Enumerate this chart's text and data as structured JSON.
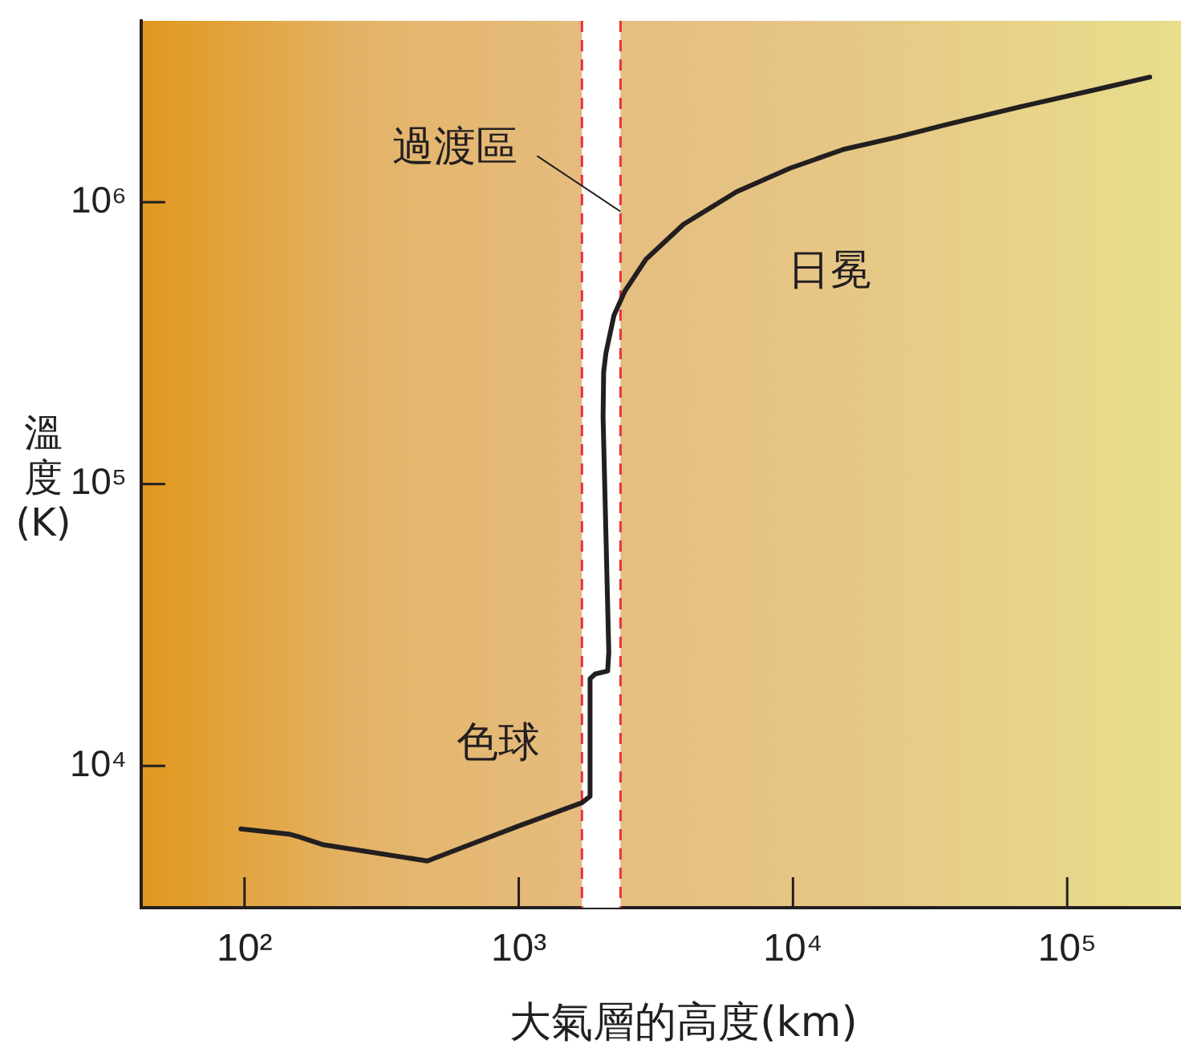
{
  "chart_data": {
    "type": "line",
    "xlabel": "大氣層的高度(km)",
    "ylabel": "溫度(K)",
    "log": "xy",
    "grid": false,
    "legend": false,
    "line_style": "solid",
    "x": [
      97,
      145,
      158,
      194,
      283,
      464,
      990,
      1700,
      1820,
      1820,
      1900,
      2110,
      2130,
      2030,
      2040,
      2080,
      2225,
      2436,
      2913,
      3990,
      6240,
      9760,
      15300,
      23900,
      35800,
      70100,
      137000,
      200000
    ],
    "series": [
      {
        "color": "#231f20",
        "values": [
          5980,
          5730,
          5600,
          5250,
          4960,
          4600,
          6100,
          7400,
          7800,
          20400,
          21200,
          21700,
          25300,
          173000,
          250000,
          292000,
          397000,
          483000,
          628000,
          835000,
          1090000,
          1320000,
          1540000,
          1700000,
          1880000,
          2200000,
          2550000,
          2780000
        ]
      }
    ],
    "xlim": [
      42,
      260000
    ],
    "ylim": [
      3140,
      4400000
    ],
    "xticks": [
      {
        "value": 100,
        "label": "10²"
      },
      {
        "value": 1000,
        "label": "10³"
      },
      {
        "value": 10000,
        "label": "10⁴"
      },
      {
        "value": 100000,
        "label": "10⁵"
      }
    ],
    "yticks": [
      {
        "value": 10000,
        "label": "10⁴"
      },
      {
        "value": 100000,
        "label": "10⁵"
      },
      {
        "value": 1000000,
        "label": "10⁶"
      }
    ],
    "bands": [
      {
        "axis": "x",
        "from": 1700,
        "to": 2350,
        "label": "過渡區",
        "color": "#ffffff"
      }
    ],
    "ref_lines": [
      {
        "axis": "x",
        "value": 1700,
        "color": "#e8333a",
        "line_style": "dashed"
      },
      {
        "axis": "x",
        "value": 2350,
        "color": "#e8333a",
        "line_style": "dashed"
      }
    ],
    "annotations": [
      "色球",
      "日冕"
    ]
  }
}
